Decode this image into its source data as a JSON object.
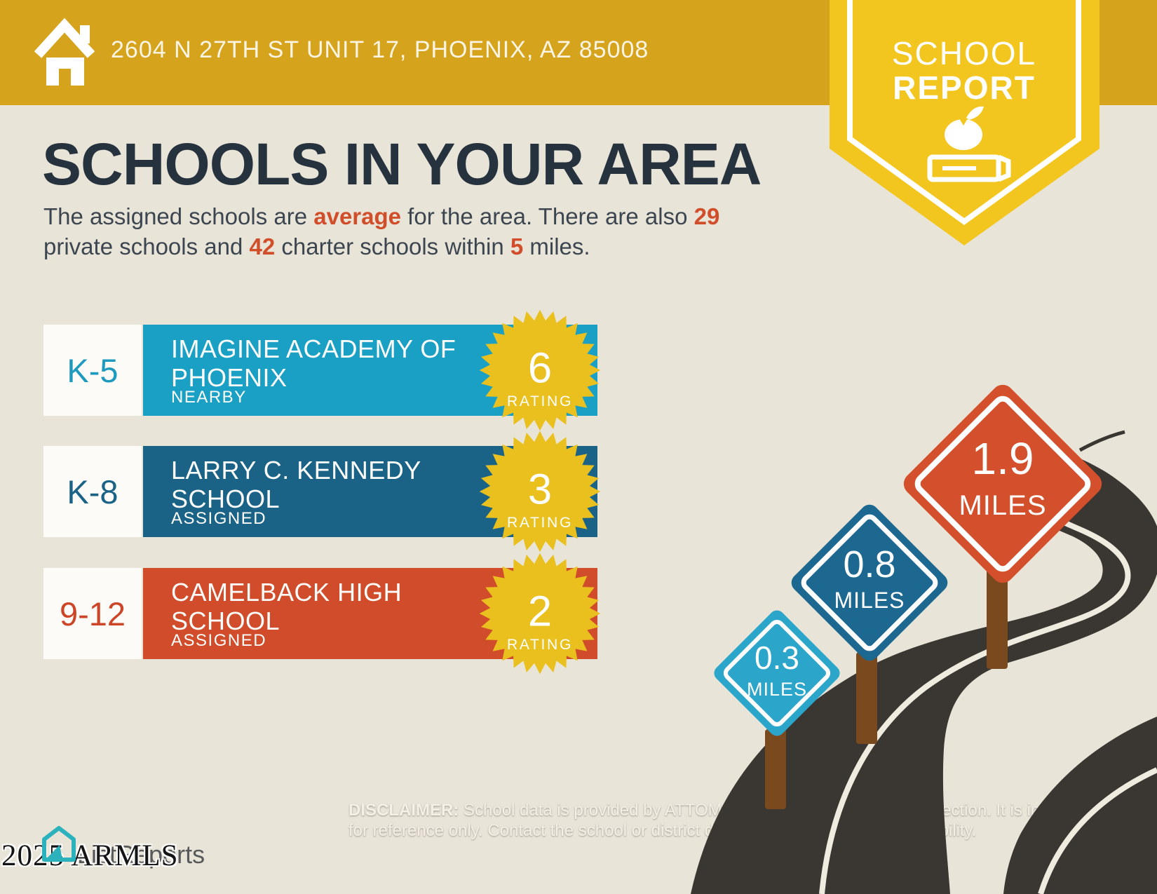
{
  "header": {
    "address": "2604 N 27TH ST UNIT 17, PHOENIX, AZ 85008",
    "banner_color": "#D5A31C",
    "badge": {
      "line1": "SCHOOL",
      "line2": "REPORT",
      "color": "#F2C61E"
    }
  },
  "title": "SCHOOLS IN YOUR AREA",
  "intro": {
    "s1": "The assigned schools are ",
    "h1": "average",
    "s2": " for the area. There are also ",
    "h2": "29",
    "s3": " private schools and ",
    "h3": "42",
    "s4": " charter schools within ",
    "h4": "5",
    "s5": " miles.",
    "accent_color": "#D14E2B"
  },
  "schools": [
    {
      "grade": "K-5",
      "name": "IMAGINE ACADEMY OF PHOENIX",
      "status": "NEARBY",
      "rating": "6",
      "rating_label": "RATING",
      "color": "#1AA0C4",
      "grade_color": "#1E9ABE"
    },
    {
      "grade": "K-8",
      "name": "LARRY C. KENNEDY SCHOOL",
      "status": "ASSIGNED",
      "rating": "3",
      "rating_label": "RATING",
      "color": "#1A6387",
      "grade_color": "#1B6386"
    },
    {
      "grade": "9-12",
      "name": "CAMELBACK HIGH SCHOOL",
      "status": "ASSIGNED",
      "rating": "2",
      "rating_label": "RATING",
      "color": "#D04C2A",
      "grade_color": "#CC4526"
    }
  ],
  "burst_color": "#E9C01E",
  "signs": [
    {
      "distance": "0.3",
      "unit": "MILES",
      "color": "#2BA5C9"
    },
    {
      "distance": "0.8",
      "unit": "MILES",
      "color": "#1D6890"
    },
    {
      "distance": "1.9",
      "unit": "MILES",
      "color": "#D4502C"
    }
  ],
  "road_color": "#3A3733",
  "post_color": "#7A4A1E",
  "footer": {
    "logo": "ListReports",
    "logo_icon_color": "#2CB2BC",
    "watermark": "2025 ARMLS",
    "disclaimer_label": "DISCLAIMER:",
    "disclaimer_line1": " School data is provided by ATTOM Data Solutions and agent selection. It is intended",
    "disclaimer_line2": "for reference only. Contact the school or district directly to verify enrollment eligibility."
  }
}
